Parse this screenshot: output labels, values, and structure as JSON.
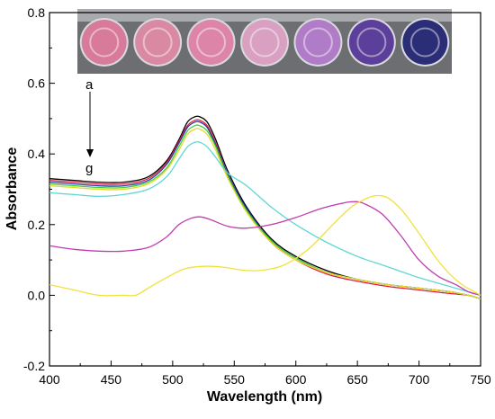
{
  "chart_data": {
    "type": "line",
    "title": "",
    "xlabel": "Wavelength (nm)",
    "ylabel": "Absorbance",
    "xlim": [
      400,
      750
    ],
    "ylim": [
      -0.2,
      0.8
    ],
    "x_ticks": [
      "400",
      "450",
      "500",
      "550",
      "600",
      "650",
      "700",
      "750"
    ],
    "y_ticks": [
      "-0.2",
      "0.0",
      "0.2",
      "0.4",
      "0.6",
      "0.8"
    ],
    "grid": false,
    "legend": "none",
    "annotations": {
      "top": "a",
      "bottom": "g"
    },
    "inset": {
      "description": "photo of seven wells",
      "well_colors": [
        "#d87a9a",
        "#d98aa2",
        "#dd85a8",
        "#d9a0c2",
        "#b07cc8",
        "#5c3f9a",
        "#2b2d77"
      ]
    },
    "series": [
      {
        "color": "#000000",
        "x": [
          400,
          420,
          440,
          460,
          480,
          495,
          505,
          512,
          518,
          522,
          528,
          535,
          545,
          560,
          580,
          600,
          625,
          650,
          675,
          700,
          725,
          740,
          750
        ],
        "y": [
          0.33,
          0.325,
          0.32,
          0.32,
          0.335,
          0.38,
          0.44,
          0.49,
          0.505,
          0.505,
          0.49,
          0.44,
          0.35,
          0.25,
          0.16,
          0.11,
          0.07,
          0.045,
          0.03,
          0.02,
          0.01,
          0.0,
          -0.01
        ]
      },
      {
        "color": "#e0203a",
        "x": [
          400,
          420,
          440,
          460,
          480,
          495,
          505,
          512,
          518,
          522,
          528,
          535,
          545,
          560,
          580,
          600,
          625,
          650,
          675,
          700,
          725,
          740,
          750
        ],
        "y": [
          0.325,
          0.32,
          0.315,
          0.315,
          0.33,
          0.375,
          0.435,
          0.48,
          0.495,
          0.495,
          0.48,
          0.43,
          0.34,
          0.24,
          0.15,
          0.1,
          0.06,
          0.04,
          0.025,
          0.015,
          0.005,
          0.0,
          -0.01
        ]
      },
      {
        "color": "#2c3aa8",
        "x": [
          400,
          420,
          440,
          460,
          480,
          495,
          505,
          512,
          518,
          522,
          528,
          535,
          545,
          560,
          580,
          600,
          625,
          650,
          675,
          700,
          725,
          740,
          750
        ],
        "y": [
          0.32,
          0.315,
          0.31,
          0.31,
          0.325,
          0.37,
          0.43,
          0.475,
          0.49,
          0.49,
          0.475,
          0.425,
          0.34,
          0.245,
          0.155,
          0.105,
          0.065,
          0.045,
          0.03,
          0.02,
          0.01,
          0.0,
          -0.01
        ]
      },
      {
        "color": "#3fcf3f",
        "x": [
          400,
          420,
          440,
          460,
          480,
          495,
          505,
          512,
          518,
          522,
          528,
          535,
          545,
          560,
          580,
          600,
          625,
          650,
          675,
          700,
          725,
          740,
          750
        ],
        "y": [
          0.315,
          0.31,
          0.305,
          0.305,
          0.32,
          0.36,
          0.42,
          0.465,
          0.48,
          0.48,
          0.465,
          0.42,
          0.335,
          0.24,
          0.155,
          0.105,
          0.065,
          0.045,
          0.03,
          0.02,
          0.01,
          0.0,
          -0.01
        ]
      },
      {
        "color": "#e8d82a",
        "x": [
          400,
          420,
          440,
          460,
          480,
          495,
          505,
          512,
          518,
          522,
          528,
          535,
          545,
          560,
          580,
          600,
          625,
          650,
          675,
          700,
          725,
          740,
          750
        ],
        "y": [
          0.31,
          0.305,
          0.3,
          0.3,
          0.315,
          0.355,
          0.41,
          0.455,
          0.47,
          0.47,
          0.455,
          0.41,
          0.33,
          0.235,
          0.15,
          0.1,
          0.065,
          0.045,
          0.03,
          0.02,
          0.01,
          0.0,
          -0.01
        ]
      },
      {
        "color": "#5fd7d4",
        "x": [
          400,
          420,
          440,
          460,
          480,
          495,
          505,
          512,
          518,
          522,
          528,
          535,
          545,
          560,
          580,
          600,
          625,
          650,
          675,
          700,
          725,
          740,
          750
        ],
        "y": [
          0.29,
          0.285,
          0.28,
          0.285,
          0.3,
          0.335,
          0.385,
          0.42,
          0.433,
          0.433,
          0.42,
          0.39,
          0.345,
          0.31,
          0.25,
          0.2,
          0.15,
          0.11,
          0.08,
          0.05,
          0.025,
          0.01,
          0.0
        ]
      },
      {
        "color": "#c23cb0",
        "x": [
          400,
          420,
          440,
          460,
          480,
          495,
          505,
          515,
          522,
          530,
          545,
          560,
          580,
          600,
          620,
          640,
          648,
          655,
          670,
          685,
          700,
          715,
          730,
          740,
          750
        ],
        "y": [
          0.14,
          0.13,
          0.125,
          0.125,
          0.135,
          0.165,
          0.2,
          0.218,
          0.222,
          0.215,
          0.195,
          0.19,
          0.2,
          0.22,
          0.245,
          0.262,
          0.265,
          0.26,
          0.23,
          0.17,
          0.1,
          0.055,
          0.03,
          0.01,
          0.0
        ]
      },
      {
        "color": "#f0e23a",
        "x": [
          400,
          420,
          440,
          460,
          470,
          480,
          495,
          510,
          525,
          540,
          555,
          570,
          590,
          610,
          630,
          645,
          655,
          662,
          668,
          675,
          685,
          695,
          705,
          715,
          725,
          735,
          745,
          750
        ],
        "y": [
          0.03,
          0.015,
          0.0,
          0.0,
          0.0,
          0.02,
          0.05,
          0.075,
          0.082,
          0.08,
          0.072,
          0.07,
          0.085,
          0.13,
          0.2,
          0.25,
          0.27,
          0.28,
          0.282,
          0.275,
          0.245,
          0.2,
          0.15,
          0.1,
          0.06,
          0.03,
          0.01,
          0.0
        ]
      }
    ]
  }
}
